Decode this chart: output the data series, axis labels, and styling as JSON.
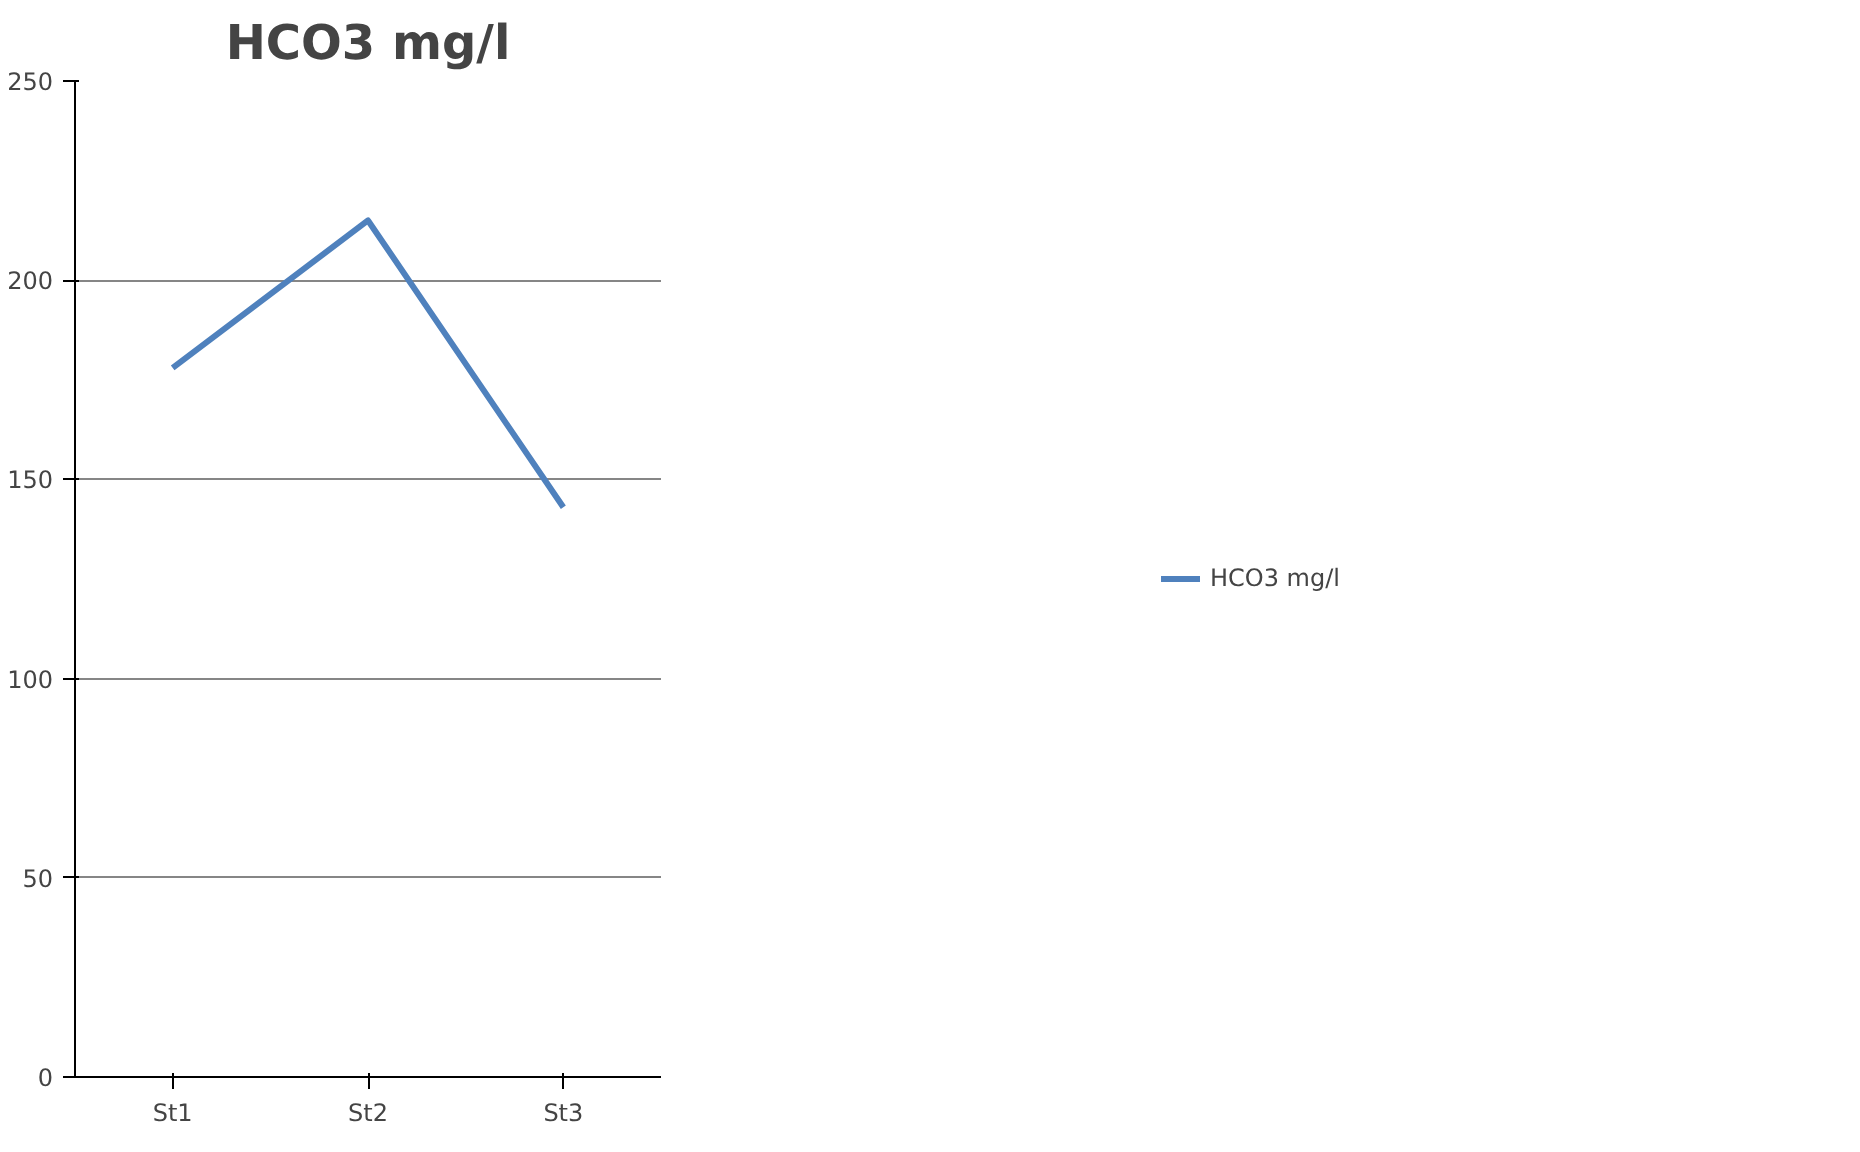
{
  "chart_data": {
    "type": "line",
    "title": "HCO3 mg/l",
    "categories": [
      "St1",
      "St2",
      "St3"
    ],
    "series": [
      {
        "name": "HCO3 mg/l",
        "color": "#4f81bd",
        "values": [
          178,
          215,
          143
        ]
      }
    ],
    "ylim": [
      0,
      250
    ],
    "yticks": [
      0,
      50,
      100,
      150,
      200,
      250
    ],
    "grid": "y",
    "legend": "right",
    "marker": "none"
  }
}
